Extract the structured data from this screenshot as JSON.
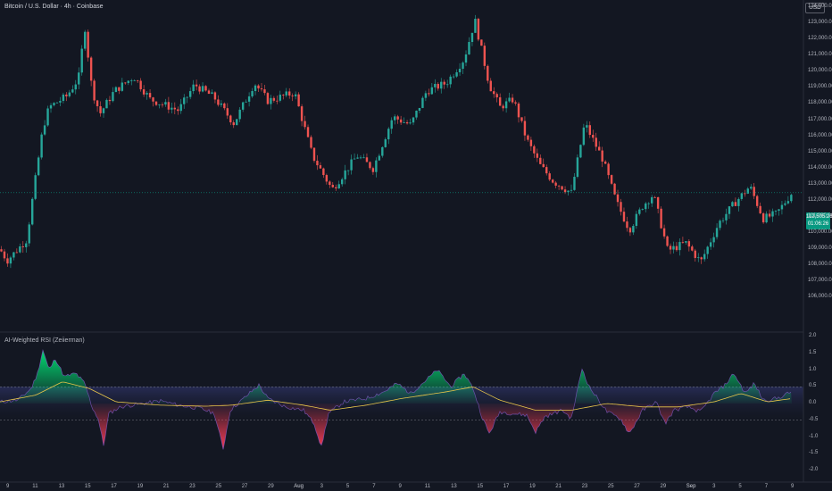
{
  "header": {
    "title": "Bitcoin / U.S. Dollar · 4h · Coinbase",
    "currency": "USD"
  },
  "price_panel": {
    "y_ticks": [
      "124,000.00",
      "123,000.00",
      "122,000.00",
      "121,000.00",
      "120,000.00",
      "119,000.00",
      "118,000.00",
      "117,000.00",
      "116,000.00",
      "115,000.00",
      "114,000.00",
      "113,000.00",
      "112,000.00",
      "111,000.00",
      "110,000.00",
      "109,000.00",
      "108,000.00",
      "107,000.00",
      "106,000.00"
    ],
    "last_price": "112,505.26",
    "countdown": "01:06:26",
    "colors": {
      "up": "#26a69a",
      "down": "#ef5350",
      "background": "#131722"
    }
  },
  "indicator_panel": {
    "title": "AI-Weighted RSI (Zeiierman)",
    "y_ticks": [
      "2.0",
      "1.5",
      "1.0",
      "0.5",
      "0.0",
      "-0.5",
      "-1.0",
      "-1.5",
      "-2.0"
    ],
    "band_upper": 0.5,
    "band_lower": -0.5,
    "colors": {
      "bull": "#00e676",
      "bear": "#ff3d57",
      "signal": "#e8c64a"
    }
  },
  "time_axis": {
    "ticks": [
      "9",
      "11",
      "13",
      "15",
      "17",
      "19",
      "21",
      "23",
      "25",
      "27",
      "29",
      "Aug",
      "3",
      "5",
      "7",
      "9",
      "11",
      "13",
      "15",
      "17",
      "19",
      "21",
      "23",
      "25",
      "27",
      "29",
      "Sep",
      "3",
      "5",
      "7",
      "9"
    ]
  },
  "chart_data": [
    {
      "type": "candlestick",
      "title": "Bitcoin / U.S. Dollar · 4h · Coinbase",
      "ylim": [
        106000,
        124500
      ],
      "key_points": [
        {
          "t": 0,
          "v": 109000
        },
        {
          "t": 8,
          "v": 108300
        },
        {
          "t": 30,
          "v": 109600
        },
        {
          "t": 34,
          "v": 111200
        },
        {
          "t": 48,
          "v": 116500
        },
        {
          "t": 55,
          "v": 117800
        },
        {
          "t": 75,
          "v": 118500
        },
        {
          "t": 88,
          "v": 119600
        },
        {
          "t": 95,
          "v": 122800
        },
        {
          "t": 103,
          "v": 118900
        },
        {
          "t": 112,
          "v": 117400
        },
        {
          "t": 128,
          "v": 118800
        },
        {
          "t": 150,
          "v": 119700
        },
        {
          "t": 168,
          "v": 118300
        },
        {
          "t": 200,
          "v": 117600
        },
        {
          "t": 218,
          "v": 119200
        },
        {
          "t": 240,
          "v": 118400
        },
        {
          "t": 262,
          "v": 116800
        },
        {
          "t": 285,
          "v": 119300
        },
        {
          "t": 300,
          "v": 118200
        },
        {
          "t": 330,
          "v": 118700
        },
        {
          "t": 350,
          "v": 114800
        },
        {
          "t": 372,
          "v": 112700
        },
        {
          "t": 400,
          "v": 114800
        },
        {
          "t": 418,
          "v": 114000
        },
        {
          "t": 440,
          "v": 117200
        },
        {
          "t": 460,
          "v": 116700
        },
        {
          "t": 478,
          "v": 118800
        },
        {
          "t": 500,
          "v": 119300
        },
        {
          "t": 520,
          "v": 120800
        },
        {
          "t": 532,
          "v": 123200
        },
        {
          "t": 548,
          "v": 119200
        },
        {
          "t": 560,
          "v": 117800
        },
        {
          "t": 575,
          "v": 118300
        },
        {
          "t": 590,
          "v": 115800
        },
        {
          "t": 605,
          "v": 114200
        },
        {
          "t": 620,
          "v": 113200
        },
        {
          "t": 640,
          "v": 112500
        },
        {
          "t": 655,
          "v": 116800
        },
        {
          "t": 675,
          "v": 114600
        },
        {
          "t": 690,
          "v": 112000
        },
        {
          "t": 705,
          "v": 110200
        },
        {
          "t": 720,
          "v": 111700
        },
        {
          "t": 732,
          "v": 112400
        },
        {
          "t": 748,
          "v": 108900
        },
        {
          "t": 768,
          "v": 109400
        },
        {
          "t": 785,
          "v": 108200
        },
        {
          "t": 805,
          "v": 110600
        },
        {
          "t": 822,
          "v": 111800
        },
        {
          "t": 840,
          "v": 112900
        },
        {
          "t": 855,
          "v": 110900
        },
        {
          "t": 870,
          "v": 111200
        },
        {
          "t": 887,
          "v": 112500
        }
      ]
    },
    {
      "type": "area",
      "title": "AI-Weighted RSI (Zeiierman)",
      "ylim": [
        -2.0,
        2.0
      ],
      "series": [
        {
          "name": "AI-Weighted RSI (Zeiierman)",
          "points": [
            {
              "t": 0,
              "v": 0.05
            },
            {
              "t": 20,
              "v": 0.1
            },
            {
              "t": 35,
              "v": 0.45
            },
            {
              "t": 42,
              "v": 0.9
            },
            {
              "t": 48,
              "v": 1.6
            },
            {
              "t": 55,
              "v": 1.0
            },
            {
              "t": 62,
              "v": 1.35
            },
            {
              "t": 72,
              "v": 0.8
            },
            {
              "t": 85,
              "v": 0.9
            },
            {
              "t": 95,
              "v": 0.6
            },
            {
              "t": 103,
              "v": -0.1
            },
            {
              "t": 110,
              "v": -0.45
            },
            {
              "t": 116,
              "v": -1.25
            },
            {
              "t": 122,
              "v": -0.3
            },
            {
              "t": 135,
              "v": -0.1
            },
            {
              "t": 160,
              "v": 0.0
            },
            {
              "t": 180,
              "v": 0.08
            },
            {
              "t": 200,
              "v": -0.05
            },
            {
              "t": 225,
              "v": -0.15
            },
            {
              "t": 240,
              "v": -0.3
            },
            {
              "t": 250,
              "v": -1.35
            },
            {
              "t": 258,
              "v": -0.2
            },
            {
              "t": 275,
              "v": 0.2
            },
            {
              "t": 290,
              "v": 0.55
            },
            {
              "t": 300,
              "v": 0.15
            },
            {
              "t": 320,
              "v": -0.1
            },
            {
              "t": 340,
              "v": -0.2
            },
            {
              "t": 352,
              "v": -0.6
            },
            {
              "t": 360,
              "v": -1.3
            },
            {
              "t": 368,
              "v": -0.3
            },
            {
              "t": 385,
              "v": 0.05
            },
            {
              "t": 410,
              "v": 0.15
            },
            {
              "t": 430,
              "v": 0.35
            },
            {
              "t": 445,
              "v": 0.6
            },
            {
              "t": 460,
              "v": 0.3
            },
            {
              "t": 475,
              "v": 0.65
            },
            {
              "t": 490,
              "v": 1.0
            },
            {
              "t": 505,
              "v": 0.5
            },
            {
              "t": 520,
              "v": 0.9
            },
            {
              "t": 530,
              "v": 0.45
            },
            {
              "t": 540,
              "v": -0.4
            },
            {
              "t": 548,
              "v": -0.9
            },
            {
              "t": 560,
              "v": -0.25
            },
            {
              "t": 575,
              "v": -0.3
            },
            {
              "t": 590,
              "v": -0.35
            },
            {
              "t": 600,
              "v": -0.85
            },
            {
              "t": 610,
              "v": -0.4
            },
            {
              "t": 630,
              "v": -0.2
            },
            {
              "t": 640,
              "v": -0.45
            },
            {
              "t": 652,
              "v": 1.05
            },
            {
              "t": 660,
              "v": 0.5
            },
            {
              "t": 680,
              "v": -0.25
            },
            {
              "t": 695,
              "v": -0.45
            },
            {
              "t": 705,
              "v": -0.9
            },
            {
              "t": 720,
              "v": -0.2
            },
            {
              "t": 735,
              "v": 0.05
            },
            {
              "t": 745,
              "v": -0.6
            },
            {
              "t": 755,
              "v": -0.2
            },
            {
              "t": 770,
              "v": -0.1
            },
            {
              "t": 785,
              "v": -0.25
            },
            {
              "t": 800,
              "v": 0.3
            },
            {
              "t": 812,
              "v": 0.55
            },
            {
              "t": 822,
              "v": 0.9
            },
            {
              "t": 835,
              "v": 0.3
            },
            {
              "t": 845,
              "v": 0.6
            },
            {
              "t": 855,
              "v": 0.1
            },
            {
              "t": 870,
              "v": 0.15
            },
            {
              "t": 887,
              "v": 0.35
            }
          ]
        },
        {
          "name": "signal",
          "points": [
            {
              "t": 0,
              "v": 0.05
            },
            {
              "t": 40,
              "v": 0.25
            },
            {
              "t": 70,
              "v": 0.65
            },
            {
              "t": 100,
              "v": 0.45
            },
            {
              "t": 130,
              "v": 0.05
            },
            {
              "t": 180,
              "v": -0.05
            },
            {
              "t": 230,
              "v": -0.08
            },
            {
              "t": 260,
              "v": -0.05
            },
            {
              "t": 300,
              "v": 0.1
            },
            {
              "t": 340,
              "v": -0.05
            },
            {
              "t": 370,
              "v": -0.2
            },
            {
              "t": 410,
              "v": -0.05
            },
            {
              "t": 450,
              "v": 0.15
            },
            {
              "t": 500,
              "v": 0.35
            },
            {
              "t": 530,
              "v": 0.5
            },
            {
              "t": 560,
              "v": 0.1
            },
            {
              "t": 600,
              "v": -0.2
            },
            {
              "t": 640,
              "v": -0.2
            },
            {
              "t": 680,
              "v": 0.0
            },
            {
              "t": 720,
              "v": -0.1
            },
            {
              "t": 760,
              "v": -0.1
            },
            {
              "t": 800,
              "v": 0.05
            },
            {
              "t": 830,
              "v": 0.3
            },
            {
              "t": 860,
              "v": 0.05
            },
            {
              "t": 887,
              "v": 0.15
            }
          ]
        }
      ]
    }
  ]
}
